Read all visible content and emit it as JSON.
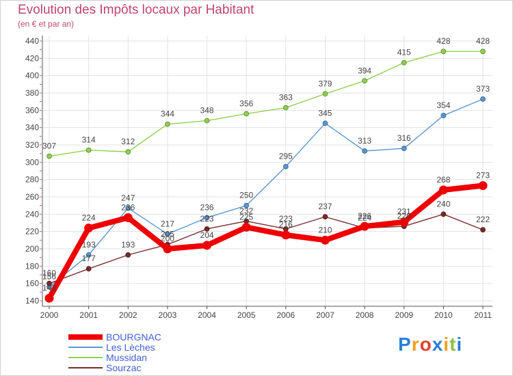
{
  "chart_data": {
    "type": "line",
    "title": "Evolution des Impôts locaux par Habitant",
    "subtitle": "(en € et par an)",
    "x": [
      "2000",
      "2001",
      "2002",
      "2003",
      "2004",
      "2005",
      "2006",
      "2007",
      "2008",
      "2009",
      "2010",
      "2011"
    ],
    "ylim": [
      140,
      440
    ],
    "yticks": [
      140,
      160,
      180,
      200,
      220,
      240,
      260,
      280,
      300,
      320,
      340,
      360,
      380,
      400,
      420,
      440
    ],
    "grid": true,
    "legend_position": "bottom-left",
    "series": [
      {
        "name": "BOURGNAC",
        "color": "#ee0000",
        "values": [
          143,
          224,
          236,
          200,
          204,
          225,
          216,
          210,
          226,
          231,
          268,
          273
        ]
      },
      {
        "name": "Les Lèches",
        "color": "#5a97d2",
        "values": [
          156,
          193,
          247,
          217,
          236,
          250,
          295,
          345,
          313,
          316,
          354,
          373
        ]
      },
      {
        "name": "Mussidan",
        "color": "#8fd14f",
        "values": [
          307,
          314,
          312,
          344,
          348,
          356,
          363,
          379,
          394,
          415,
          428,
          428
        ]
      },
      {
        "name": "Sourzac",
        "color": "#7a2a2a",
        "values": [
          160,
          177,
          193,
          205,
          223,
          232,
          223,
          237,
          224,
          226,
          240,
          222
        ]
      }
    ]
  },
  "logo": {
    "text": "Proxiti"
  }
}
